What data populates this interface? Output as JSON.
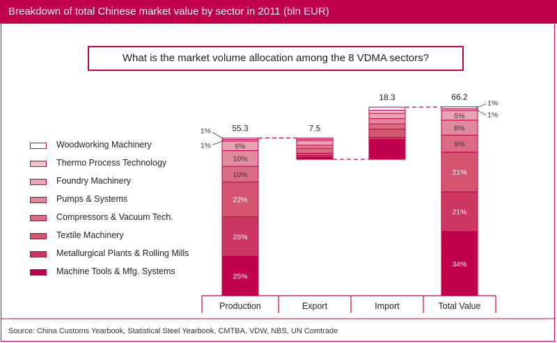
{
  "header": {
    "title": "Breakdown of total Chinese market value by sector in 2011",
    "unit": "(bln EUR)"
  },
  "question": "What is the market volume allocation among the 8 VDMA sectors?",
  "source": "Source: China Customs Yearbook, Statistical Steel Yearbook, CMTBA, VDW, NBS, UN Comtrade",
  "colors": [
    "#c0004c",
    "#cc385f",
    "#d45570",
    "#da6b83",
    "#e08a9c",
    "#e8a4b2",
    "#f0c2cc",
    "#ffffff"
  ],
  "chart_data": {
    "type": "bar",
    "categories": [
      "Production",
      "Export",
      "Import",
      "Total Value"
    ],
    "sectors": [
      "Machine Tools & Mfg. Systems",
      "Metallurgical Plants & Rolling Mills",
      "Textile Machinery",
      "Compressors & Vacuum Tech.",
      "Pumps & Systems",
      "Foundry Machinery",
      "Thermo Process Technology",
      "Woodworking Machinery"
    ],
    "totals": [
      55.3,
      7.5,
      18.3,
      66.2
    ],
    "bar_ranges": [
      [
        0,
        55.3
      ],
      [
        47.8,
        55.3
      ],
      [
        47.8,
        66.1
      ],
      [
        0,
        66.2
      ]
    ],
    "shares": {
      "Production": [
        25,
        25,
        22,
        10,
        10,
        6,
        1,
        1
      ],
      "Total Value": [
        34,
        21,
        21,
        9,
        8,
        5,
        1,
        1
      ]
    },
    "share_labels": {
      "Production": [
        "25%",
        "25%",
        "22%",
        "10%",
        "10%",
        "6%",
        "1%",
        "1%"
      ],
      "Total Value": [
        "34%",
        "21%",
        "21%",
        "9%",
        "8%",
        "5%",
        "1%",
        "1%"
      ]
    },
    "export_shares": [
      10,
      8,
      10,
      24,
      14,
      22,
      6,
      6
    ],
    "import_shares": [
      38,
      4,
      16,
      10,
      10,
      10,
      6,
      6
    ]
  }
}
